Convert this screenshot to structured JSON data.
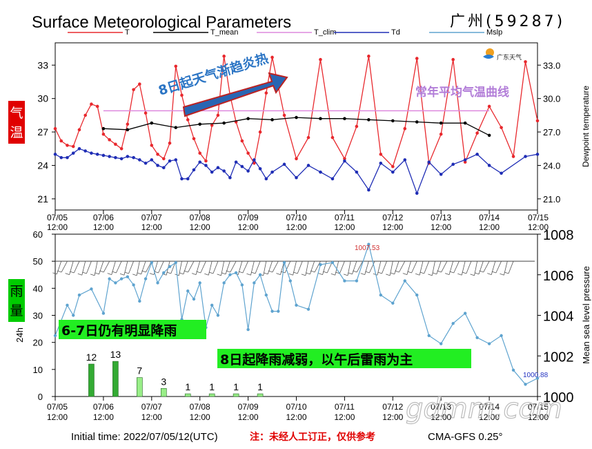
{
  "title": "Surface Meteorological Parameters",
  "station": "广州(59287)",
  "legend": [
    {
      "name": "T",
      "color": "#e8282d"
    },
    {
      "name": "T_mean",
      "color": "#000000"
    },
    {
      "name": "T_clim",
      "color": "#dd88dd"
    },
    {
      "name": "Td",
      "color": "#1f2db5"
    },
    {
      "name": "Mslp",
      "color": "#5ea3cf"
    }
  ],
  "logo_text": "广东天气",
  "top_panel": {
    "side_label": "气温",
    "right_axis_label": "Dewpoint temperature",
    "y_ticks_left": [
      "33",
      "30",
      "27",
      "24",
      "21"
    ],
    "y_ticks_right": [
      "33.0",
      "30.0",
      "27.0",
      "24.0",
      "21.0"
    ],
    "annotation_arrow": "8日起天气渐趋炎热",
    "annotation_clim": "常年平均气温曲线"
  },
  "bottom_panel": {
    "side_label": "雨量",
    "left_axis_label": "24h",
    "right_axis_label": "Mean sea level pressure",
    "y_ticks_left": [
      "60",
      "50",
      "40",
      "30",
      "20",
      "10",
      "0"
    ],
    "y_ticks_right": [
      "1008",
      "1006",
      "1004",
      "1002",
      "1000"
    ],
    "annotation_rain1": "6-7日仍有明显降雨",
    "annotation_rain2": "8日起降雨减弱，以午后雷雨为主",
    "max_label": "1007.53",
    "min_label": "1000.88"
  },
  "x_ticks": [
    {
      "date": "07/05",
      "time": "12:00"
    },
    {
      "date": "07/06",
      "time": "12:00"
    },
    {
      "date": "07/07",
      "time": "12:00"
    },
    {
      "date": "07/08",
      "time": "12:00"
    },
    {
      "date": "07/09",
      "time": "12:00"
    },
    {
      "date": "07/10",
      "time": "12:00"
    },
    {
      "date": "07/11",
      "time": "12:00"
    },
    {
      "date": "07/12",
      "time": "12:00"
    },
    {
      "date": "07/13",
      "time": "12:00"
    },
    {
      "date": "07/14",
      "time": "12:00"
    },
    {
      "date": "07/15",
      "time": "12:00"
    }
  ],
  "footer": {
    "initial_time": "Initial time: 2022/07/05/12(UTC)",
    "note": "注：未经人工订正，仅供参考",
    "model": "CMA-GFS  0.25°"
  },
  "watermark": "gdmm.com",
  "chart_data": [
    {
      "type": "line",
      "title": "Surface Meteorological Parameters",
      "x_unit": "hours since 07/05 12:00",
      "ylim": [
        20,
        35
      ],
      "series": [
        {
          "name": "T",
          "x": [
            0,
            3,
            6,
            9,
            12,
            15,
            18,
            21,
            24,
            27,
            30,
            33,
            36,
            39,
            42,
            45,
            48,
            51,
            54,
            57,
            60,
            63,
            66,
            69,
            72,
            75,
            78,
            81,
            84,
            87,
            90,
            93,
            96,
            99,
            102,
            105,
            108,
            114,
            120,
            126,
            132,
            138,
            144,
            150,
            156,
            162,
            168,
            174,
            180,
            186,
            192,
            198,
            204,
            210,
            216,
            222,
            228,
            234,
            240
          ],
          "values": [
            27.3,
            26.2,
            25.8,
            25.7,
            27.2,
            28.5,
            29.5,
            29.3,
            26.8,
            26.3,
            25.9,
            25.5,
            27.7,
            30.8,
            31.3,
            28.7,
            25.8,
            25.0,
            24.6,
            26.0,
            32.9,
            30.3,
            28.1,
            26.4,
            25.1,
            24.4,
            27.6,
            28.5,
            33.8,
            30.3,
            27.9,
            26.2,
            25.1,
            24.2,
            27.0,
            30.5,
            33.7,
            28.5,
            24.6,
            26.5,
            33.5,
            26.5,
            24.6,
            27.5,
            33.8,
            25.0,
            23.9,
            27.3,
            33.6,
            24.2,
            26.8,
            33.5,
            24.3,
            26.9,
            29.3,
            27.4,
            24.8,
            33.3,
            28.0
          ]
        },
        {
          "name": "T_mean",
          "x": [
            24,
            36,
            48,
            60,
            72,
            84,
            96,
            108,
            120,
            132,
            144,
            156,
            168,
            180,
            192,
            204,
            216
          ],
          "values": [
            27.3,
            27.2,
            27.8,
            27.4,
            27.7,
            27.8,
            28.2,
            28.1,
            28.3,
            28.2,
            28.2,
            28.1,
            28.0,
            27.9,
            27.8,
            27.8,
            26.7
          ]
        },
        {
          "name": "T_clim",
          "x": [
            24,
            216
          ],
          "values": [
            28.9,
            28.9
          ]
        },
        {
          "name": "Td",
          "x": [
            0,
            3,
            6,
            9,
            12,
            15,
            18,
            21,
            24,
            27,
            30,
            33,
            36,
            39,
            42,
            45,
            48,
            51,
            54,
            57,
            60,
            63,
            66,
            69,
            72,
            75,
            78,
            81,
            84,
            87,
            90,
            93,
            96,
            99,
            102,
            105,
            108,
            114,
            120,
            126,
            132,
            138,
            144,
            150,
            156,
            162,
            168,
            174,
            180,
            186,
            192,
            198,
            204,
            210,
            216,
            222,
            234,
            240
          ],
          "values": [
            25.0,
            24.7,
            24.7,
            25.1,
            25.5,
            25.3,
            25.1,
            25.0,
            24.9,
            24.8,
            24.7,
            24.6,
            24.8,
            24.7,
            24.5,
            24.2,
            24.5,
            24.0,
            23.8,
            24.4,
            24.5,
            22.8,
            22.8,
            23.6,
            24.3,
            24.0,
            23.4,
            23.8,
            23.5,
            22.9,
            24.3,
            23.9,
            23.5,
            24.5,
            23.7,
            22.8,
            23.4,
            24.1,
            22.9,
            24.0,
            23.4,
            22.8,
            24.4,
            23.4,
            21.8,
            24.2,
            23.4,
            24.5,
            21.5,
            24.3,
            23.2,
            24.1,
            24.5,
            25.0,
            24.0,
            23.3,
            24.8,
            25.0
          ]
        }
      ]
    },
    {
      "type": "bar",
      "categories": [
        "07/06 06:00",
        "07/06 18:00",
        "07/07 06:00",
        "07/07 18:00",
        "07/08 06:00",
        "07/08 18:00",
        "07/09 06:00",
        "07/09 18:00"
      ],
      "values": [
        12,
        13,
        7,
        3,
        1,
        1,
        1,
        1
      ],
      "ylabel": "24h",
      "ylim": [
        0,
        60
      ]
    },
    {
      "type": "line",
      "series": [
        {
          "name": "Mslp",
          "x": [
            0,
            6,
            9,
            12,
            18,
            24,
            27,
            30,
            33,
            36,
            39,
            42,
            45,
            48,
            51,
            54,
            57,
            60,
            63,
            66,
            69,
            72,
            75,
            78,
            81,
            84,
            87,
            90,
            93,
            96,
            99,
            102,
            105,
            108,
            111,
            114,
            117,
            120,
            126,
            132,
            138,
            144,
            150,
            156,
            162,
            168,
            174,
            180,
            186,
            192,
            198,
            204,
            210,
            216,
            222,
            228,
            234,
            240
          ],
          "values": [
            1003.0,
            1004.5,
            1004.0,
            1005.0,
            1005.3,
            1004.1,
            1005.8,
            1005.6,
            1005.8,
            1005.9,
            1005.5,
            1004.7,
            1005.8,
            1006.6,
            1005.6,
            1006.1,
            1006.4,
            1006.6,
            1003.8,
            1005.2,
            1004.8,
            1005.6,
            1003.4,
            1004.5,
            1004.0,
            1005.6,
            1006.0,
            1006.1,
            1005.5,
            1003.3,
            1005.6,
            1006.0,
            1005.0,
            1004.2,
            1004.2,
            1006.6,
            1005.7,
            1004.5,
            1004.3,
            1006.5,
            1006.6,
            1005.7,
            1005.7,
            1007.5,
            1005.0,
            1004.6,
            1005.7,
            1005.0,
            1003.0,
            1002.6,
            1003.6,
            1004.1,
            1002.9,
            1002.6,
            1003.0,
            1001.3,
            1000.6,
            1000.9
          ]
        }
      ],
      "ylim": [
        1000,
        1008
      ],
      "max_label": "1007.53",
      "min_label": "1000.88"
    }
  ]
}
